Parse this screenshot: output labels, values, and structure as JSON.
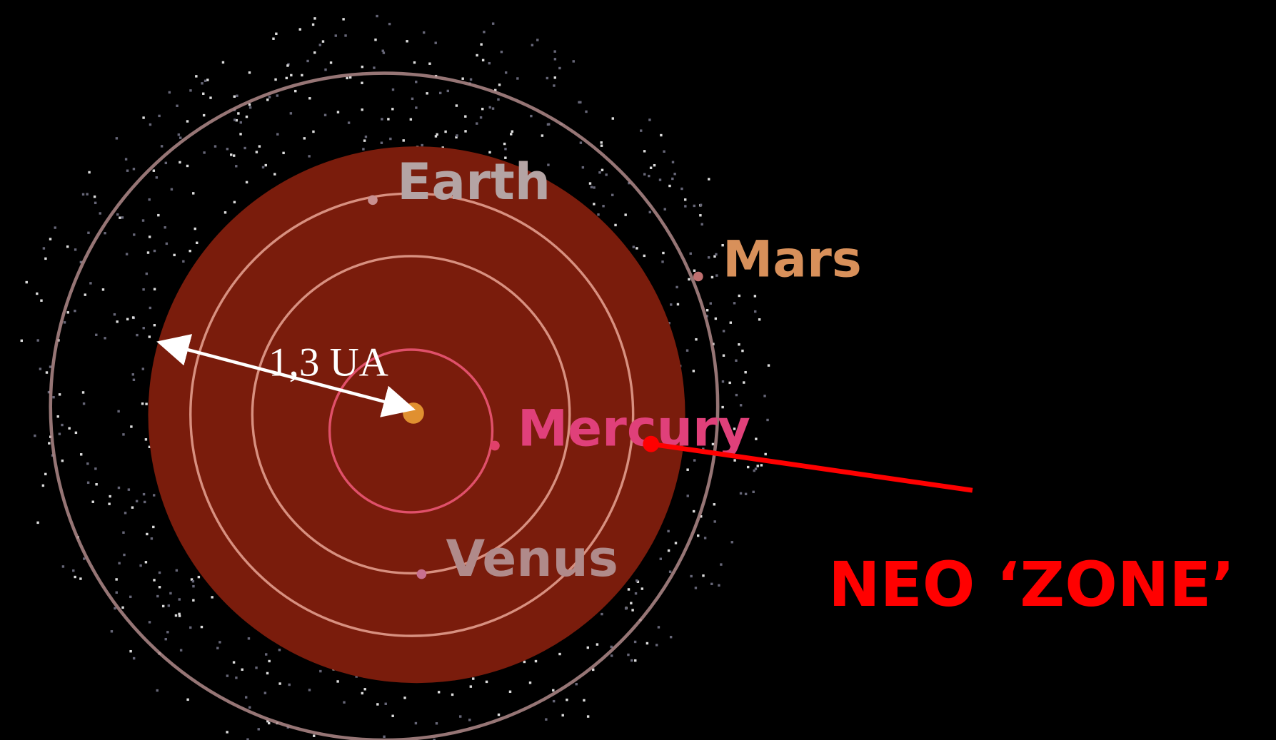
{
  "planets": [
    {
      "label": "Earth"
    },
    {
      "label": "Mars"
    },
    {
      "label": "Mercury"
    },
    {
      "label": "Venus"
    }
  ],
  "distance_label": "1,3 UA",
  "zone_label": "NEO ‘ZONE’"
}
